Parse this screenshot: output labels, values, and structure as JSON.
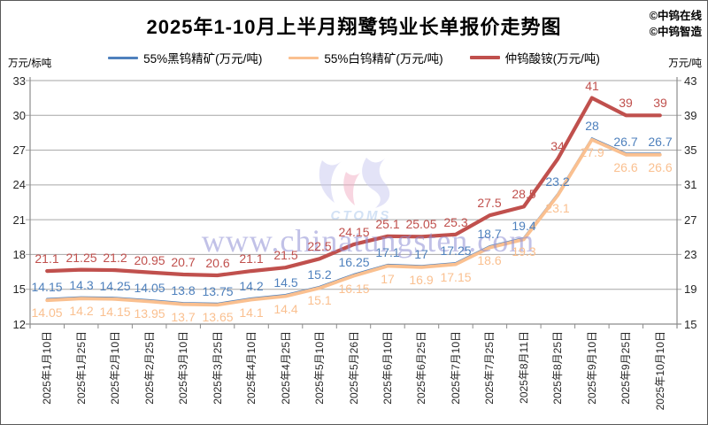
{
  "title": "2025年1-10月上半月翔鹭钨业长单报价走势图",
  "copyright": [
    "©中钨在线",
    "©中钨智造"
  ],
  "axes": {
    "left_unit": "万元/标吨",
    "right_unit": "万元/吨",
    "left_ticks": [
      33,
      30,
      27,
      24,
      21,
      18,
      15,
      12
    ],
    "right_ticks": [
      43,
      39,
      35,
      31,
      27,
      23,
      19,
      15
    ]
  },
  "watermark": {
    "url_text": "www.chinatungsten.com",
    "logo_text": "CTOMS"
  },
  "colors": {
    "blue": "#4F81BD",
    "orange": "#FAC090",
    "red": "#C0504D",
    "grid": "#A6A6A6",
    "axis": "#8C8C8C",
    "watermark": "#8F8FD4",
    "logo_lavender": "#C9C9F0",
    "logo_pink": "#F2AFC4",
    "logo_text_blue": "#A8C6EC"
  },
  "chart_data": {
    "type": "line",
    "title": "2025年1-10月上半月翔鹭钨业长单报价走势图",
    "categories": [
      "2025年1月10日",
      "2025年1月25日",
      "2025年2月10日",
      "2025年2月25日",
      "2025年3月10日",
      "2025年3月25日",
      "2025年4月10日",
      "2025年4月25日",
      "2025年5月10日",
      "2025年5月26日",
      "2025年6月10日",
      "2025年6月25日",
      "2025年7月10日",
      "2025年7月25日",
      "2025年8月11日",
      "2025年8月25日",
      "2025年9月10日",
      "2025年9月25日",
      "2025年10月10日"
    ],
    "series": [
      {
        "name": "55%黑钨精矿(万元/吨)",
        "axis": "left",
        "color_key": "blue",
        "stroke_width": 2.6,
        "label_side": "above",
        "values": [
          14.15,
          14.3,
          14.25,
          14.05,
          13.8,
          13.75,
          14.2,
          14.5,
          15.2,
          16.25,
          17.1,
          17,
          17.25,
          18.7,
          19.4,
          23.2,
          28,
          26.7,
          26.7
        ]
      },
      {
        "name": "55%白钨精矿(万元/吨)",
        "axis": "left",
        "color_key": "orange",
        "stroke_width": 3.8,
        "label_side": "below",
        "values": [
          14.05,
          14.2,
          14.15,
          13.95,
          13.7,
          13.65,
          14.1,
          14.4,
          15.1,
          16.15,
          17,
          16.9,
          17.15,
          18.6,
          19.3,
          23.1,
          27.9,
          26.6,
          26.6
        ]
      },
      {
        "name": "仲钨酸铵(万元/吨)",
        "axis": "right",
        "color_key": "red",
        "stroke_width": 4.2,
        "label_side": "above",
        "values": [
          21.1,
          21.25,
          21.2,
          20.95,
          20.7,
          20.6,
          21.1,
          21.5,
          22.5,
          24.15,
          25.1,
          25.05,
          25.3,
          27.5,
          28.5,
          34,
          41,
          39,
          39
        ]
      }
    ],
    "left_axis_range": [
      12,
      33
    ],
    "right_axis_range": [
      15,
      43
    ],
    "grid": true,
    "legend_position": "top"
  }
}
